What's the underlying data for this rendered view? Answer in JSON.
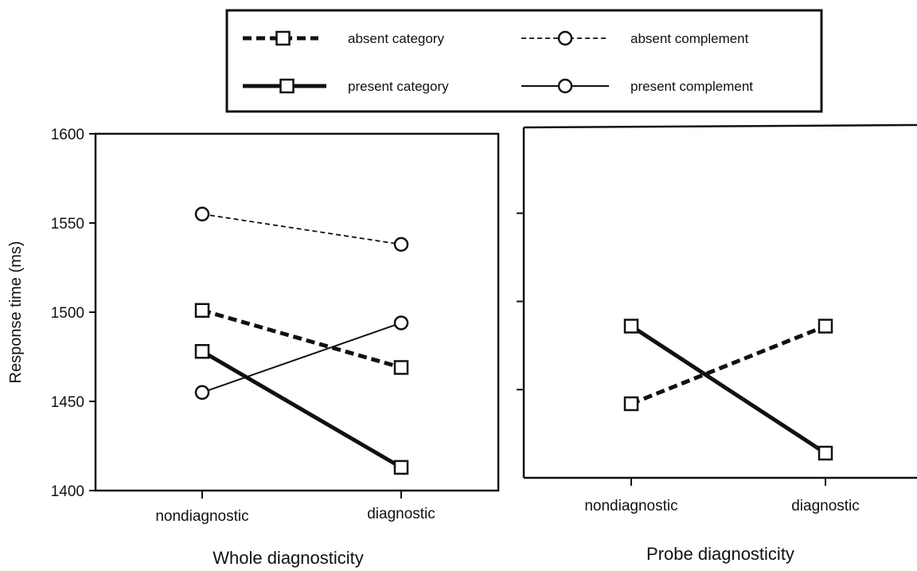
{
  "chart_data": [
    {
      "type": "line",
      "title": "",
      "xlabel": "Whole diagnosticity",
      "ylabel": "Response time (ms)",
      "categories": [
        "nondiagnostic",
        "diagnostic"
      ],
      "ylim": [
        1400,
        1600
      ],
      "yticks": [
        "1400",
        "1450",
        "1500",
        "1550",
        "1600"
      ],
      "series": [
        {
          "name": "absent complement",
          "values": [
            1555,
            1538
          ],
          "marker": "circle",
          "line": "dashed-thin"
        },
        {
          "name": "absent category",
          "values": [
            1501,
            1469
          ],
          "marker": "square",
          "line": "dashed-thick"
        },
        {
          "name": "present category",
          "values": [
            1478,
            1413
          ],
          "marker": "square",
          "line": "solid-thick"
        },
        {
          "name": "present complement",
          "values": [
            1455,
            1494
          ],
          "marker": "circle",
          "line": "solid-thin"
        }
      ]
    },
    {
      "type": "line",
      "title": "",
      "xlabel": "Probe diagnosticity",
      "ylabel": "",
      "categories": [
        "nondiagnostic",
        "diagnostic"
      ],
      "ylim": [
        1400,
        1600
      ],
      "series": [
        {
          "name": "absent category",
          "values": [
            1442,
            1486
          ],
          "marker": "square",
          "line": "dashed-thick"
        },
        {
          "name": "present category",
          "values": [
            1486,
            1414
          ],
          "marker": "square",
          "line": "solid-thick"
        }
      ]
    }
  ],
  "legend": {
    "position": "top-center",
    "entries": [
      {
        "label": "absent category",
        "marker": "square",
        "line": "dashed-thick"
      },
      {
        "label": "absent complement",
        "marker": "circle",
        "line": "dashed-thin"
      },
      {
        "label": "present category",
        "marker": "square",
        "line": "solid-thick"
      },
      {
        "label": "present complement",
        "marker": "circle",
        "line": "solid-thin"
      }
    ]
  },
  "colors": {
    "ink": "#111111",
    "background": "#ffffff"
  }
}
